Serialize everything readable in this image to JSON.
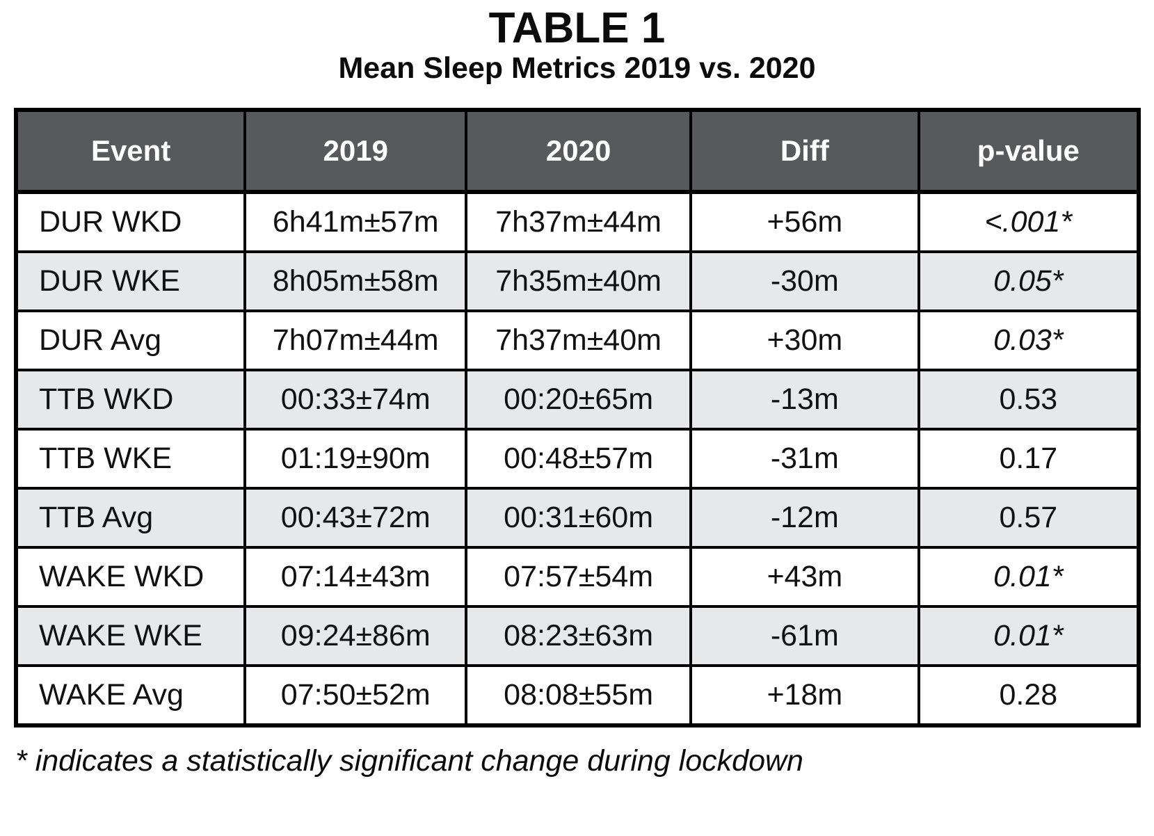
{
  "title": "TABLE 1",
  "subtitle": "Mean Sleep Metrics 2019 vs. 2020",
  "footnote": "* indicates a statistically significant change during lockdown",
  "colors": {
    "header_bg": "#58595b",
    "header_text": "#ffffff",
    "row_alt_bg": "#e7e8e9",
    "border": "#000000"
  },
  "chart_data": {
    "type": "table",
    "title": "TABLE 1",
    "subtitle": "Mean Sleep Metrics 2019 vs. 2020",
    "columns": [
      "Event",
      "2019",
      "2020",
      "Diff",
      "p-value"
    ],
    "rows": [
      {
        "event": "DUR WKD",
        "y2019": "6h41m±57m",
        "y2020": "7h37m±44m",
        "diff": "+56m",
        "p": "<.001*",
        "significant": true
      },
      {
        "event": "DUR WKE",
        "y2019": "8h05m±58m",
        "y2020": "7h35m±40m",
        "diff": "-30m",
        "p": "0.05*",
        "significant": true
      },
      {
        "event": "DUR Avg",
        "y2019": "7h07m±44m",
        "y2020": "7h37m±40m",
        "diff": "+30m",
        "p": "0.03*",
        "significant": true
      },
      {
        "event": "TTB WKD",
        "y2019": "00:33±74m",
        "y2020": "00:20±65m",
        "diff": "-13m",
        "p": "0.53",
        "significant": false
      },
      {
        "event": "TTB WKE",
        "y2019": "01:19±90m",
        "y2020": "00:48±57m",
        "diff": "-31m",
        "p": "0.17",
        "significant": false
      },
      {
        "event": "TTB Avg",
        "y2019": "00:43±72m",
        "y2020": "00:31±60m",
        "diff": "-12m",
        "p": "0.57",
        "significant": false
      },
      {
        "event": "WAKE WKD",
        "y2019": "07:14±43m",
        "y2020": "07:57±54m",
        "diff": "+43m",
        "p": "0.01*",
        "significant": true
      },
      {
        "event": "WAKE WKE",
        "y2019": "09:24±86m",
        "y2020": "08:23±63m",
        "diff": "-61m",
        "p": "0.01*",
        "significant": true
      },
      {
        "event": "WAKE Avg",
        "y2019": "07:50±52m",
        "y2020": "08:08±55m",
        "diff": "+18m",
        "p": "0.28",
        "significant": false
      }
    ],
    "footnote": "* indicates a statistically significant change during lockdown"
  }
}
